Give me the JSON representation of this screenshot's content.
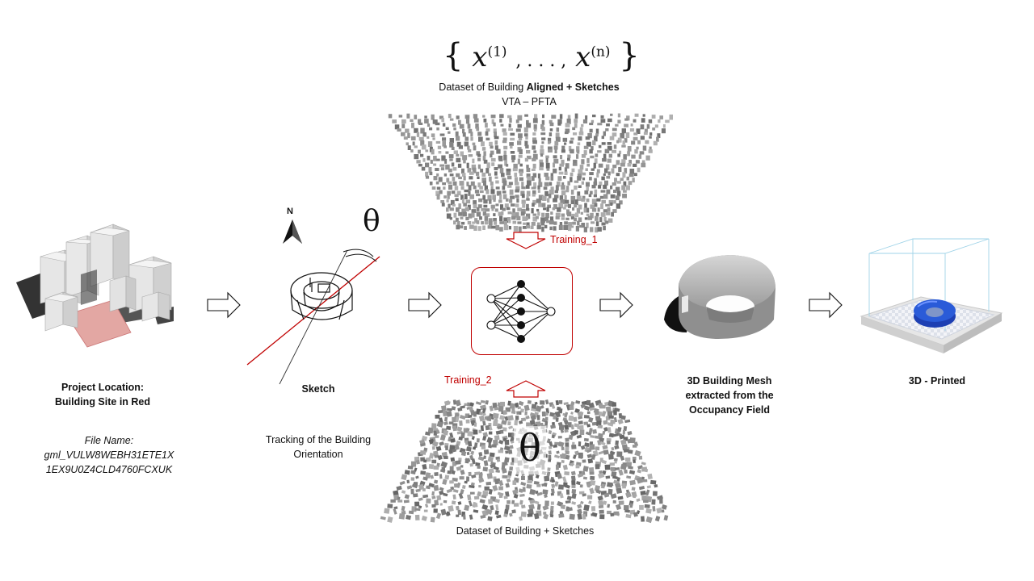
{
  "formula": {
    "lbrace": "{",
    "x": "x",
    "sup1": "(1)",
    "dots": ", . . . ,",
    "supn": "(n)",
    "rbrace": "}"
  },
  "dataset_top": {
    "line1_prefix": "Dataset of Building ",
    "line1_bold": "Aligned + Sketches",
    "line2": "VTA – PFTA"
  },
  "training_1": "Training_1",
  "training_2": "Training_2",
  "dataset_bottom": "Dataset of Building + Sketches",
  "theta_sketch": "θ",
  "theta_bottom": "θ",
  "north_label": "N",
  "project": {
    "title_line1": "Project Location:",
    "title_line2": "Building Site in Red",
    "file_label": "File Name:",
    "file_line1": "gml_VULW8WEBH31ETE1X",
    "file_line2": "1EX9U0Z4CLD4760FCXUK"
  },
  "sketch": {
    "title": "Sketch",
    "desc_line1": "Tracking of the Building",
    "desc_line2": "Orientation"
  },
  "mesh": {
    "line1": "3D Building Mesh",
    "line2": "extracted from the",
    "line3": "Occupancy Field"
  },
  "printed": "3D - Printed",
  "colors": {
    "accent_red": "#c00000",
    "site_red": "#e3a7a3",
    "print_blue": "#2a5bd8"
  }
}
